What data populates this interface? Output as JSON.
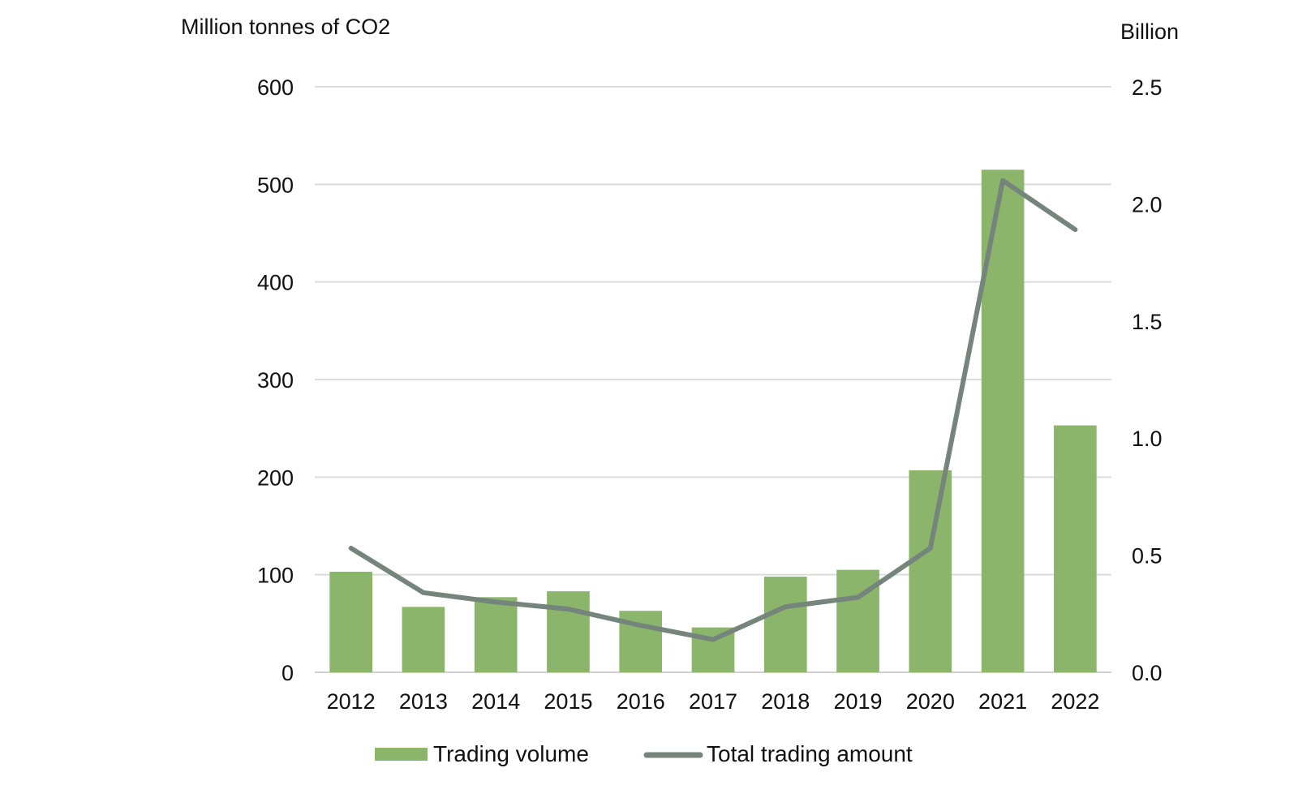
{
  "chart_data": {
    "type": "bar",
    "categories": [
      "2012",
      "2013",
      "2014",
      "2015",
      "2016",
      "2017",
      "2018",
      "2019",
      "2020",
      "2021",
      "2022"
    ],
    "series": [
      {
        "name": "Trading volume",
        "type": "bar",
        "axis": "left",
        "color": "#8ab56b",
        "values": [
          103,
          67,
          77,
          83,
          63,
          46,
          98,
          105,
          207,
          515,
          253
        ]
      },
      {
        "name": "Total trading amount",
        "type": "line",
        "axis": "right",
        "color": "#76857c",
        "values": [
          0.53,
          0.34,
          0.3,
          0.27,
          0.2,
          0.14,
          0.28,
          0.32,
          0.53,
          2.1,
          1.89
        ]
      }
    ],
    "ylabel": "Million tonnes of CO2",
    "y2label": "Billion",
    "ylim": [
      0,
      600
    ],
    "y2lim": [
      0,
      2.5
    ],
    "yticks": [
      "0",
      "100",
      "200",
      "300",
      "400",
      "500",
      "600"
    ],
    "y2ticks": [
      "0.0",
      "0.5",
      "1.0",
      "1.5",
      "2.0",
      "2.5"
    ],
    "grid": true,
    "legend_position": "bottom"
  }
}
